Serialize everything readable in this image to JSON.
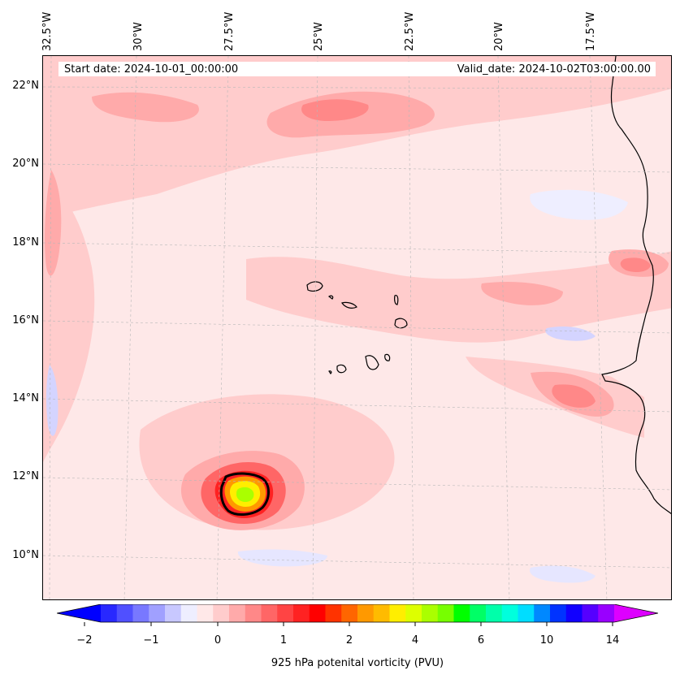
{
  "map": {
    "start_date": "Start date: 2024-10-01_00:00:00",
    "valid_date": "Valid_date: 2024-10-02T03:00:00.00",
    "lon_labels": [
      "32.5°W",
      "30°W",
      "27.5°W",
      "25°W",
      "22.5°W",
      "20°W",
      "17.5°W"
    ],
    "lat_labels": [
      "22°N",
      "20°N",
      "18°N",
      "16°N",
      "14°N",
      "12°N",
      "10°N"
    ],
    "lon_range": [
      -32.8,
      -15.3
    ],
    "lat_range": [
      8.9,
      22.8
    ],
    "gridlines": true
  },
  "colorbar": {
    "title": "925 hPa potenital vorticity (PVU)",
    "tick_labels": [
      "−2",
      "−1",
      "0",
      "1",
      "2",
      "4",
      "6",
      "10",
      "14"
    ],
    "colors": [
      "#0000ff",
      "#2828ff",
      "#5050ff",
      "#7878ff",
      "#a0a0ff",
      "#c8c8ff",
      "#eeeeff",
      "#ffe8e8",
      "#ffcccc",
      "#ffaaaa",
      "#ff8888",
      "#ff6666",
      "#ff4444",
      "#ff2222",
      "#ff0000",
      "#ff3300",
      "#ff6600",
      "#ff9900",
      "#ffbb00",
      "#ffee00",
      "#ddff00",
      "#aaff00",
      "#77ff00",
      "#00ff00",
      "#00ff66",
      "#00ffaa",
      "#00ffdd",
      "#00ddff",
      "#0088ff",
      "#0033ff",
      "#1100ff",
      "#5500ff",
      "#9900ff",
      "#dd00ff"
    ]
  }
}
